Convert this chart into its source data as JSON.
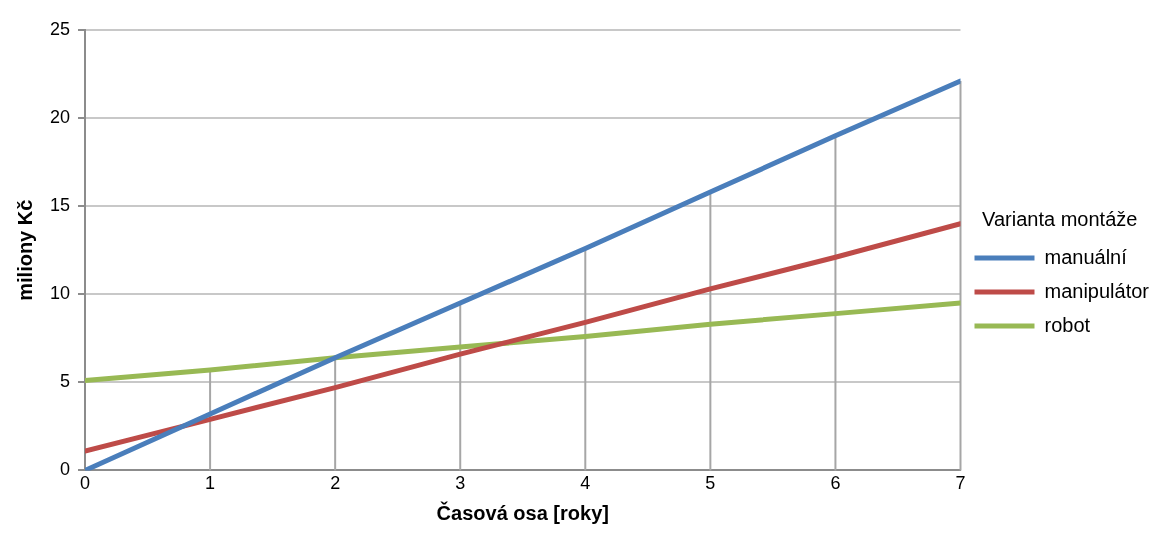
{
  "chart_data": {
    "type": "line",
    "xlabel": "Časová osa [roky]",
    "ylabel": "miliony Kč",
    "legend_title": "Varianta montáže",
    "legend": "right",
    "grid": "y",
    "marker": "none",
    "line_style": "solid",
    "x": [
      0,
      1,
      2,
      3,
      4,
      5,
      6,
      7
    ],
    "xlim": [
      0,
      7
    ],
    "xticks": [
      0,
      1,
      2,
      3,
      4,
      5,
      6,
      7
    ],
    "ylim": [
      0,
      25
    ],
    "yticks": [
      0,
      5,
      10,
      15,
      20,
      25
    ],
    "ref_lines": [
      {
        "axis": "x",
        "value": 1,
        "color": "#a6a6a6"
      },
      {
        "axis": "x",
        "value": 2,
        "color": "#a6a6a6"
      },
      {
        "axis": "x",
        "value": 3,
        "color": "#a6a6a6"
      },
      {
        "axis": "x",
        "value": 4,
        "color": "#a6a6a6"
      },
      {
        "axis": "x",
        "value": 5,
        "color": "#a6a6a6"
      },
      {
        "axis": "x",
        "value": 6,
        "color": "#a6a6a6"
      },
      {
        "axis": "x",
        "value": 7,
        "color": "#a6a6a6"
      }
    ],
    "series": [
      {
        "name": "manuální",
        "color": "#4a7ebb",
        "values": [
          0,
          3.2,
          6.4,
          9.5,
          12.6,
          15.8,
          19.0,
          22.1
        ]
      },
      {
        "name": "manipulátor",
        "color": "#be4b48",
        "values": [
          1.1,
          2.9,
          4.7,
          6.6,
          8.4,
          10.3,
          12.1,
          14.0
        ]
      },
      {
        "name": "robot",
        "color": "#98b954",
        "values": [
          5.1,
          5.7,
          6.4,
          7.0,
          7.6,
          8.3,
          8.9,
          9.5
        ]
      }
    ]
  }
}
